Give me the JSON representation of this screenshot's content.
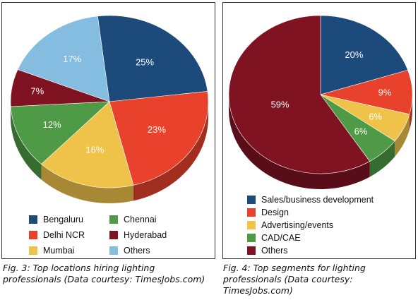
{
  "chart_data": [
    {
      "type": "pie",
      "categories": [
        "Bengaluru",
        "Delhi NCR",
        "Mumbai",
        "Chennai",
        "Hyderabad",
        "Others"
      ],
      "values": [
        25,
        23,
        16,
        12,
        7,
        17
      ],
      "value_labels": [
        "25%",
        "23%",
        "16%",
        "12%",
        "7%",
        "17%"
      ],
      "colors": [
        "#1c4a7a",
        "#e8412c",
        "#efc24a",
        "#4e9a46",
        "#7f1322",
        "#84bde0"
      ],
      "three_d": true,
      "legend_position": "bottom",
      "caption": "Fig. 3: Top locations hiring lighting professionals (Data courtesy: TimesJobs.com)"
    },
    {
      "type": "pie",
      "categories": [
        "Sales/business development",
        "Design",
        "Advertising/events",
        "CAD/CAE",
        "Others"
      ],
      "values": [
        20,
        9,
        6,
        6,
        59
      ],
      "value_labels": [
        "20%",
        "9%",
        "6%",
        "6%",
        "59%"
      ],
      "colors": [
        "#1c4a7a",
        "#e8412c",
        "#efc24a",
        "#4e9a46",
        "#7f1322"
      ],
      "three_d": true,
      "legend_position": "bottom",
      "caption": "Fig. 4: Top segments for lighting professionals (Data courtesy: TimesJobs.com)"
    }
  ]
}
